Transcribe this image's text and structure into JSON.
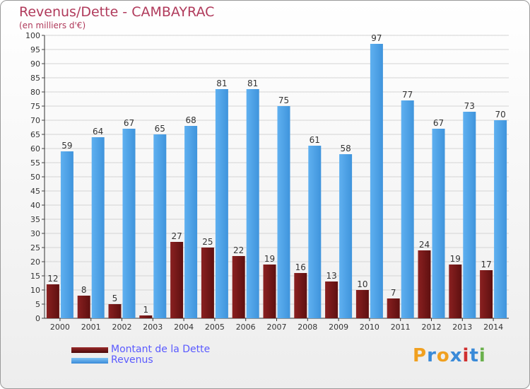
{
  "title": "Revenus/Dette - CAMBAYRAC",
  "subtitle": "(en milliers d'€)",
  "legend": [
    {
      "label": "Montant de la Dette",
      "color": "#7a1a1a"
    },
    {
      "label": "Revenus",
      "color": "#4aa0e6"
    }
  ],
  "logo": {
    "letters": [
      "P",
      "r",
      "o",
      "x",
      "i",
      "t",
      "i"
    ],
    "colors": [
      "#f0a020",
      "#3a8ad8",
      "#f0a020",
      "#3a8ad8",
      "#d03030",
      "#3a8ad8",
      "#6ab04c"
    ]
  },
  "colors": {
    "debt": "#7a1a1a",
    "revenue": "#4aa0e6",
    "title": "#b03a5b",
    "legend_text": "#5a5aff"
  },
  "chart_data": {
    "type": "bar",
    "title": "Revenus/Dette - CAMBAYRAC",
    "subtitle": "(en milliers d'€)",
    "categories": [
      "2000",
      "2001",
      "2002",
      "2003",
      "2004",
      "2005",
      "2006",
      "2007",
      "2008",
      "2009",
      "2010",
      "2011",
      "2012",
      "2013",
      "2014"
    ],
    "series": [
      {
        "name": "Montant de la Dette",
        "values": [
          12,
          8,
          5,
          1,
          27,
          25,
          22,
          19,
          16,
          13,
          10,
          7,
          24,
          19,
          17
        ]
      },
      {
        "name": "Revenus",
        "values": [
          59,
          64,
          67,
          65,
          68,
          81,
          81,
          75,
          61,
          58,
          97,
          77,
          67,
          73,
          70
        ]
      }
    ],
    "ylim": [
      0,
      100
    ],
    "yticks": [
      0,
      5,
      10,
      15,
      20,
      25,
      30,
      35,
      40,
      45,
      50,
      55,
      60,
      65,
      70,
      75,
      80,
      85,
      90,
      95,
      100
    ],
    "grid": true,
    "legend_position": "bottom-left"
  }
}
